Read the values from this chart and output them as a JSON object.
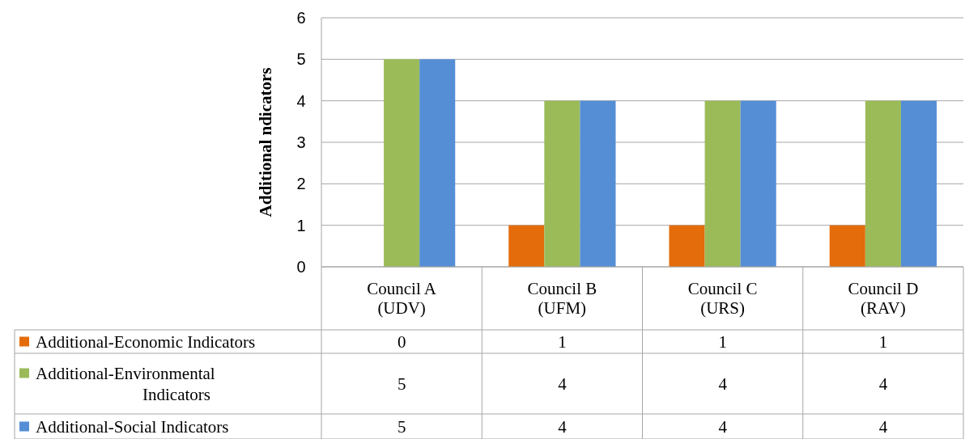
{
  "chart_data": {
    "type": "bar",
    "ylabel": "Additional ndicators",
    "categories": [
      "Council A (UDV)",
      "Council B (UFM)",
      "Council C (URS)",
      "Council D (RAV)"
    ],
    "series": [
      {
        "name": "Additional-Economic Indicators",
        "color": "#e46c0a",
        "values": [
          0,
          1,
          1,
          1
        ]
      },
      {
        "name": "Additional-Environmental Indicators",
        "color": "#9bbb59",
        "values": [
          5,
          4,
          4,
          4
        ]
      },
      {
        "name": "Additional-Social Indicators",
        "color": "#558ed5",
        "values": [
          5,
          4,
          4,
          4
        ]
      }
    ],
    "ylim": [
      0,
      6
    ],
    "yticks": [
      0,
      1,
      2,
      3,
      4,
      5,
      6
    ],
    "grid": "y",
    "legend": "bottom",
    "data_labels": true
  }
}
